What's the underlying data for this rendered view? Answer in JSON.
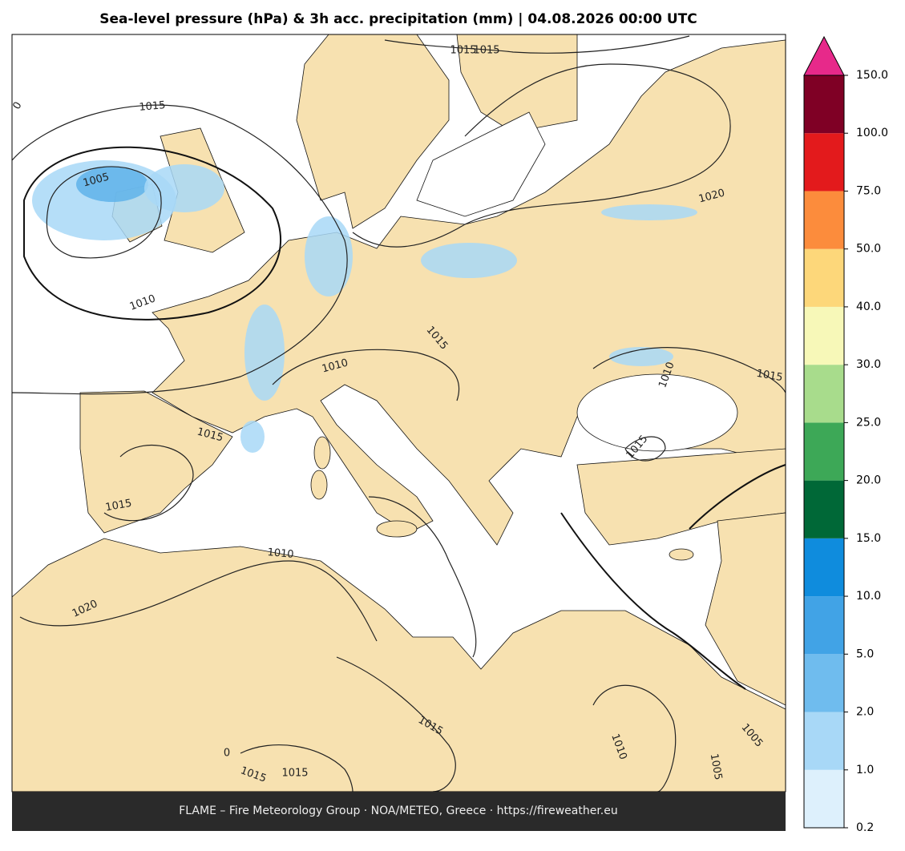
{
  "title": "Sea-level pressure (hPa) & 3h acc. precipitation (mm)  |  04.08.2026 00:00 UTC",
  "footer": "FLAME – Fire Meteorology Group · NOA/METEO, Greece · https://fireweather.eu",
  "colorbar": {
    "ticks": [
      0.2,
      {
        "value": 1.0,
        "label": "1.0"
      },
      {
        "value": 2.0,
        "label": "2.0"
      },
      {
        "value": 5.0,
        "label": "5.0"
      },
      {
        "value": 10.0,
        "label": "10.0"
      },
      {
        "value": 15.0,
        "label": "15.0"
      },
      {
        "value": 20.0,
        "label": "20.0"
      },
      {
        "value": 25.0,
        "label": "25.0"
      },
      {
        "value": 30.0,
        "label": "30.0"
      },
      {
        "value": 40.0,
        "label": "40.0"
      },
      {
        "value": 50.0,
        "label": "50.0"
      },
      {
        "value": 75.0,
        "label": "75.0"
      },
      {
        "value": 100.0,
        "label": "100.0"
      },
      {
        "value": 150.0,
        "label": "150.0"
      }
    ],
    "colors": [
      "#ddf0fc",
      "#a8d8f7",
      "#6fbcee",
      "#41a3e6",
      "#0f8cdd",
      "#006837",
      "#3da857",
      "#a8dc8c",
      "#f7f8b8",
      "#fdd77a",
      "#fc8c3c",
      "#e31a1c",
      "#7f0025"
    ],
    "extend_color": "#e7298a"
  },
  "contour_labels": [
    "1015",
    "1015",
    "1005",
    "1010",
    "1015",
    "1010",
    "1015",
    "1015",
    "1010",
    "1015",
    "1015",
    "1015",
    "1020",
    "1015",
    "1015",
    "1010",
    "1005",
    "1005",
    "1020",
    "1010",
    "1015",
    "0",
    "0"
  ]
}
